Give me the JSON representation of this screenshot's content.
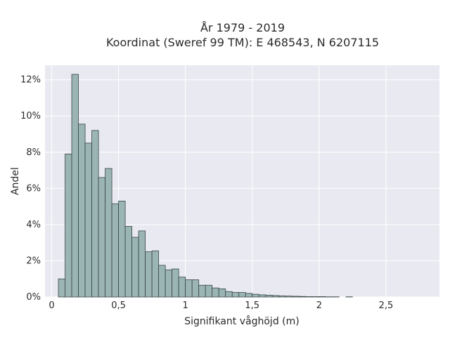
{
  "chart_data": {
    "type": "bar",
    "title_lines": [
      "År 1979 - 2019",
      "Koordinat (Sweref 99 TM): E 468543, N 6207115"
    ],
    "xlabel": "Signifikant våghöjd (m)",
    "ylabel": "Andel",
    "xlim": [
      -0.05,
      2.9
    ],
    "ylim": [
      0,
      12.8
    ],
    "x_ticks": [
      0,
      0.5,
      1,
      1.5,
      2,
      2.5
    ],
    "x_tick_labels": [
      "0",
      "0,5",
      "1",
      "1,5",
      "2",
      "2,5"
    ],
    "y_ticks": [
      0,
      2,
      4,
      6,
      8,
      10,
      12
    ],
    "y_tick_labels": [
      "0%",
      "2%",
      "4%",
      "6%",
      "8%",
      "10%",
      "12%"
    ],
    "bin_width": 0.05,
    "bin_start": 0.05,
    "values": [
      1.0,
      7.9,
      12.3,
      9.55,
      8.5,
      9.2,
      6.6,
      7.1,
      5.15,
      5.3,
      3.9,
      3.3,
      3.65,
      2.5,
      2.55,
      1.75,
      1.5,
      1.55,
      1.1,
      0.95,
      0.95,
      0.65,
      0.65,
      0.5,
      0.45,
      0.3,
      0.25,
      0.25,
      0.2,
      0.15,
      0.12,
      0.1,
      0.08,
      0.06,
      0.05,
      0.04,
      0.03,
      0.02,
      0.02,
      0.02,
      0.01,
      0.01,
      0.0,
      0.01,
      0.0
    ],
    "grid": true,
    "colors": {
      "bar_fill": "#9bb5b5",
      "bar_stroke": "#3a4545",
      "plot_bg": "#e9e9f1",
      "grid": "#ffffff"
    }
  }
}
